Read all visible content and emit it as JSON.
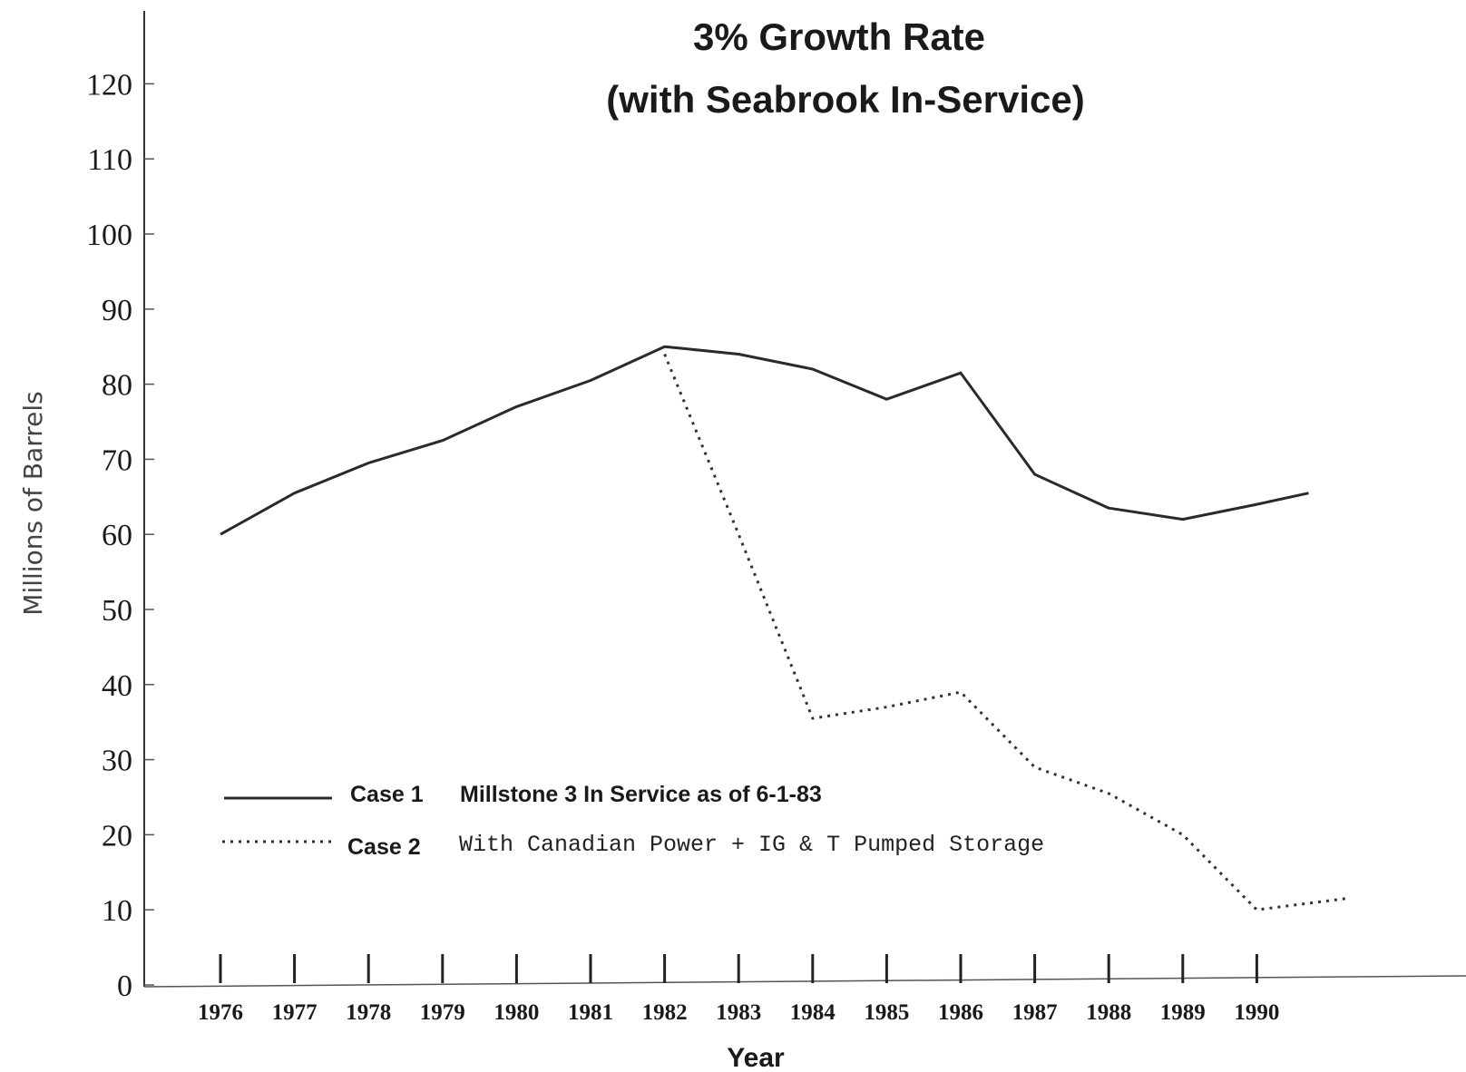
{
  "chart_data": {
    "type": "line",
    "title_lines": [
      "3% Growth Rate",
      "(with Seabrook In-Service)"
    ],
    "xlabel": "Year",
    "ylabel": "Millions of Barrels",
    "ylim": [
      0,
      130
    ],
    "y_ticks": [
      0,
      10,
      20,
      30,
      40,
      50,
      60,
      70,
      80,
      90,
      100,
      110,
      120
    ],
    "x_ticks": [
      "1976",
      "1977",
      "1978",
      "1979",
      "1980",
      "1981",
      "1982",
      "1983",
      "1984",
      "1985",
      "1986",
      "1987",
      "1988",
      "1989",
      "1990"
    ],
    "grid": false,
    "legend_position": "lower-left",
    "series": [
      {
        "name": "Case 1",
        "description": "Millstone 3 In Service as of 6-1-83",
        "style": "solid",
        "color": "#2a2a2a",
        "x": [
          1976,
          1977,
          1978,
          1979,
          1980,
          1981,
          1982,
          1983,
          1984,
          1985,
          1986,
          1987,
          1988,
          1989,
          1990,
          1990.7
        ],
        "y": [
          60,
          65.5,
          69.5,
          72.5,
          77,
          80.5,
          85,
          84,
          82,
          78,
          81.5,
          68,
          63.5,
          62,
          64,
          65.5
        ]
      },
      {
        "name": "Case 2",
        "description": "With Canadian Power + IG & T Pumped Storage",
        "style": "dotted",
        "color": "#333333",
        "x": [
          1982,
          1983,
          1984,
          1985,
          1986,
          1987,
          1988,
          1989,
          1990,
          1991.2
        ],
        "y": [
          84,
          60,
          35.5,
          37,
          39,
          29,
          25.5,
          20,
          10,
          11.5
        ]
      }
    ]
  }
}
